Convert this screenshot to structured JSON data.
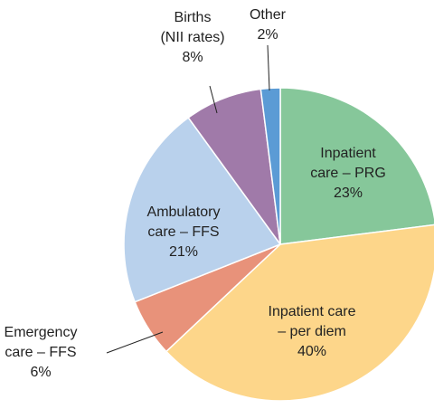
{
  "chart_data": {
    "type": "pie",
    "categories": [
      [
        "Inpatient",
        "care – PRG"
      ],
      [
        "Inpatient care",
        "– per diem"
      ],
      [
        "Emergency",
        "care – FFS"
      ],
      [
        "Ambulatory",
        "care – FFS"
      ],
      [
        "Births",
        "(NII rates)"
      ],
      [
        "Other"
      ]
    ],
    "values": [
      23,
      40,
      6,
      21,
      8,
      2
    ],
    "value_labels": [
      "23%",
      "40%",
      "6%",
      "21%",
      "8%",
      "2%"
    ],
    "colors": [
      "#86c79a",
      "#fdd68a",
      "#e8927a",
      "#b9d1ec",
      "#a07aa9",
      "#5b9bd5"
    ]
  }
}
